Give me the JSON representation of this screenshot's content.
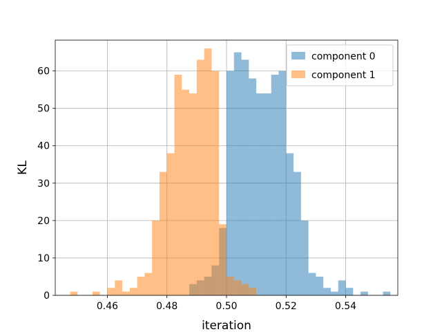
{
  "chart_data": {
    "type": "histogram",
    "title": "",
    "xlabel": "iteration",
    "ylabel": "KL",
    "xlim": [
      0.4425,
      0.5575
    ],
    "ylim": [
      0,
      68.25
    ],
    "xticks": [
      0.46,
      0.48,
      0.5,
      0.52,
      0.54
    ],
    "xtick_labels": [
      "0.46",
      "0.48",
      "0.50",
      "0.52",
      "0.54"
    ],
    "yticks": [
      0,
      10,
      20,
      30,
      40,
      50,
      60
    ],
    "ytick_labels": [
      "0",
      "10",
      "20",
      "30",
      "40",
      "50",
      "60"
    ],
    "grid": true,
    "legend_position": "top-right",
    "bin_width": 0.0025,
    "series": [
      {
        "name": "component 0",
        "color": "#1f77b4",
        "alpha": 0.5,
        "bin_start": 0.4875,
        "counts": [
          3,
          4,
          5,
          8,
          18,
          60,
          65,
          63,
          58,
          54,
          54,
          59,
          60,
          38,
          33,
          20,
          6,
          5,
          2,
          1,
          4,
          2,
          0,
          1,
          0,
          0,
          1
        ]
      },
      {
        "name": "component 1",
        "color": "#ff7f0e",
        "alpha": 0.5,
        "bin_start": 0.4475,
        "counts": [
          1,
          0,
          0,
          1,
          0,
          2,
          4,
          1,
          2,
          5,
          6,
          20,
          33,
          38,
          59,
          55,
          54,
          63,
          66,
          60,
          19,
          5,
          4,
          3,
          2
        ]
      }
    ]
  }
}
